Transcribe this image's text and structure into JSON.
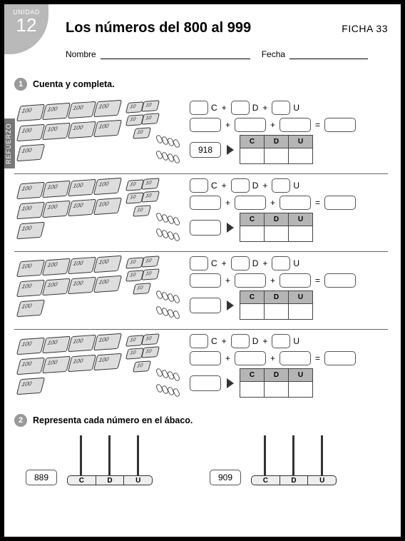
{
  "header": {
    "unit_label": "UNIDAD",
    "unit_number": "12",
    "title": "Los números del 800 al 999",
    "ficha": "FICHA 33",
    "nombre_label": "Nombre",
    "fecha_label": "Fecha"
  },
  "side_tab": "REFUERZO",
  "section1": {
    "badge": "1",
    "title": "Cuenta y completa.",
    "cdu_labels": {
      "c": "C",
      "d": "D",
      "u": "U"
    },
    "plus": "+",
    "eq": "=",
    "rows": [
      {
        "prefill": "918"
      },
      {
        "prefill": ""
      },
      {
        "prefill": ""
      },
      {
        "prefill": ""
      }
    ]
  },
  "section2": {
    "badge": "2",
    "title": "Representa cada número en el ábaco.",
    "cdu_labels": {
      "c": "C",
      "d": "D",
      "u": "U"
    },
    "items": [
      {
        "number": "889"
      },
      {
        "number": "909"
      }
    ]
  },
  "colors": {
    "tab_bg": "#b9b9b9",
    "side_bg": "#777777",
    "badge_bg": "#999999",
    "table_header_bg": "#b5b5b5",
    "border": "#000000"
  }
}
